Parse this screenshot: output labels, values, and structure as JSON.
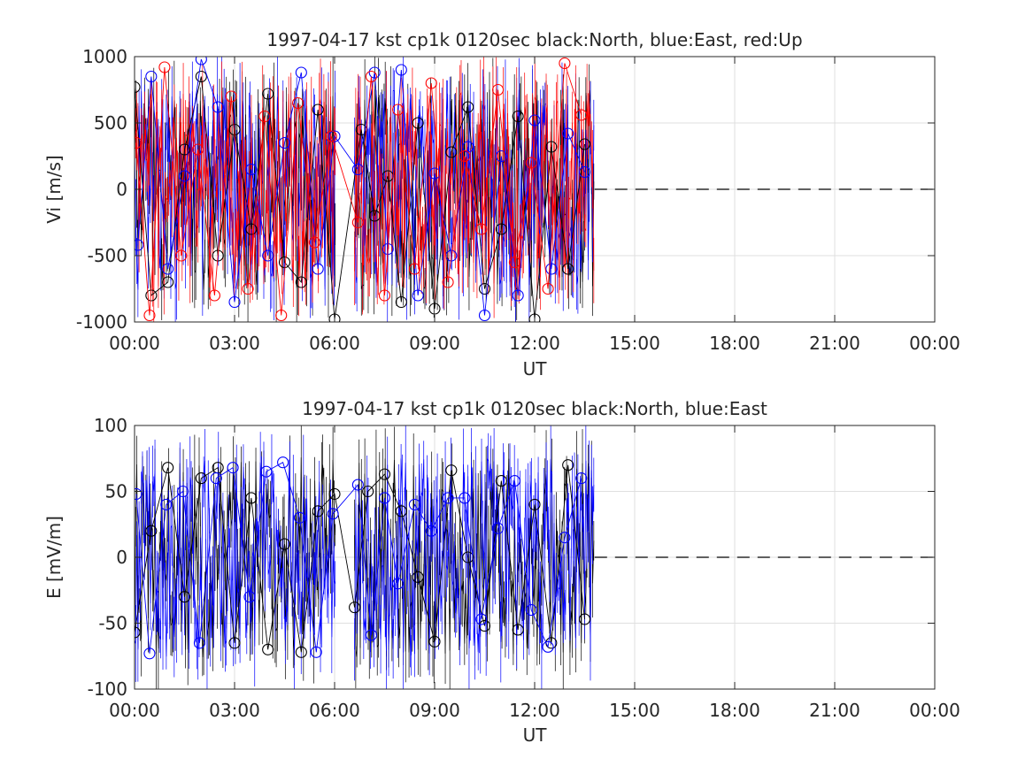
{
  "chart_data": [
    {
      "type": "scatter",
      "title": "1997-04-17 kst cp1k 0120sec black:North, blue:East, red:Up",
      "xlabel": "UT",
      "ylabel": "Vi [m/s]",
      "xlim": [
        "00:00",
        "24:00"
      ],
      "ylim": [
        -1000,
        1000
      ],
      "xticklabels": [
        "00:00",
        "03:00",
        "06:00",
        "09:00",
        "12:00",
        "15:00",
        "18:00",
        "21:00",
        "00:00"
      ],
      "yticks": [
        -1000,
        -500,
        0,
        500,
        1000
      ],
      "grid": true,
      "zero_line": "dashed",
      "data_coverage_hours": [
        0.0,
        13.8
      ],
      "gap_hours": [
        6.05,
        6.6
      ],
      "series": [
        {
          "label": "black:North",
          "color": "#000000",
          "marker": "open-circle",
          "error_bars": true,
          "x": [
            0.0,
            0.5,
            1.0,
            1.5,
            2.0,
            2.5,
            3.0,
            3.5,
            4.0,
            4.5,
            5.0,
            5.5,
            6.0,
            6.8,
            7.2,
            7.6,
            8.0,
            8.5,
            9.0,
            9.5,
            10.0,
            10.5,
            11.0,
            11.5,
            12.0,
            12.5,
            13.0,
            13.5
          ],
          "y": [
            770,
            -800,
            -700,
            300,
            850,
            -500,
            450,
            -300,
            720,
            -550,
            -700,
            600,
            -980,
            450,
            -200,
            100,
            -850,
            500,
            -900,
            280,
            620,
            -750,
            -300,
            550,
            -980,
            320,
            -600,
            340
          ]
        },
        {
          "label": "blue:East",
          "color": "#0000ff",
          "marker": "open-circle",
          "error_bars": true,
          "x": [
            0.1,
            0.5,
            1.0,
            1.5,
            2.0,
            2.5,
            3.0,
            3.5,
            4.0,
            4.5,
            5.0,
            5.5,
            6.0,
            6.7,
            7.2,
            7.6,
            8.0,
            8.5,
            9.0,
            9.5,
            10.0,
            10.5,
            11.0,
            11.5,
            12.0,
            12.5,
            13.0,
            13.5
          ],
          "y": [
            -420,
            850,
            -600,
            100,
            980,
            620,
            -850,
            150,
            -500,
            350,
            880,
            -600,
            400,
            150,
            880,
            -450,
            900,
            -800,
            120,
            -500,
            320,
            -950,
            250,
            -800,
            520,
            -600,
            420,
            130
          ]
        },
        {
          "label": "red:Up",
          "color": "#ff0000",
          "marker": "open-circle",
          "error_bars": true,
          "x": [
            0.05,
            0.45,
            0.9,
            1.4,
            1.9,
            2.4,
            2.9,
            3.4,
            3.9,
            4.4,
            4.9,
            5.4,
            5.9,
            6.7,
            7.1,
            7.5,
            7.9,
            8.4,
            8.9,
            9.4,
            9.9,
            10.4,
            10.9,
            11.4,
            11.9,
            12.4,
            12.9,
            13.4
          ],
          "y": [
            350,
            -950,
            920,
            -500,
            300,
            -800,
            700,
            -750,
            550,
            -950,
            650,
            -400,
            400,
            -250,
            850,
            -800,
            600,
            -600,
            800,
            -700,
            250,
            -300,
            750,
            -550,
            200,
            -750,
            950,
            560
          ]
        }
      ]
    },
    {
      "type": "scatter",
      "title": "1997-04-17 kst cp1k 0120sec black:North, blue:East",
      "xlabel": "UT",
      "ylabel": "E [mV/m]",
      "xlim": [
        "00:00",
        "24:00"
      ],
      "ylim": [
        -100,
        100
      ],
      "xticklabels": [
        "00:00",
        "03:00",
        "06:00",
        "09:00",
        "12:00",
        "15:00",
        "18:00",
        "21:00",
        "00:00"
      ],
      "yticks": [
        -100,
        -50,
        0,
        50,
        100
      ],
      "grid": true,
      "zero_line": "dashed",
      "data_coverage_hours": [
        0.0,
        13.8
      ],
      "gap_hours": [
        6.05,
        6.6
      ],
      "series": [
        {
          "label": "black:North",
          "color": "#000000",
          "marker": "open-circle",
          "error_bars": true,
          "x": [
            0.0,
            0.5,
            1.0,
            1.5,
            2.0,
            2.5,
            3.0,
            3.5,
            4.0,
            4.5,
            5.0,
            5.5,
            6.0,
            6.6,
            7.0,
            7.5,
            8.0,
            8.5,
            9.0,
            9.5,
            10.0,
            10.5,
            11.0,
            11.5,
            12.0,
            12.5,
            13.0,
            13.5
          ],
          "y": [
            -57,
            20,
            68,
            -30,
            60,
            68,
            -65,
            45,
            -70,
            10,
            -72,
            35,
            48,
            -38,
            50,
            63,
            35,
            -15,
            -64,
            66,
            0,
            -52,
            58,
            -55,
            40,
            -65,
            70,
            -47
          ]
        },
        {
          "label": "blue:East",
          "color": "#0000ff",
          "marker": "open-circle",
          "error_bars": true,
          "x": [
            0.05,
            0.45,
            0.95,
            1.45,
            1.95,
            2.45,
            2.95,
            3.45,
            3.95,
            4.45,
            4.95,
            5.45,
            5.95,
            6.7,
            7.1,
            7.5,
            7.9,
            8.4,
            8.9,
            9.4,
            9.9,
            10.4,
            10.9,
            11.4,
            11.9,
            12.4,
            12.9,
            13.4
          ],
          "y": [
            48,
            -73,
            40,
            50,
            -65,
            60,
            68,
            -30,
            65,
            72,
            30,
            -72,
            33,
            55,
            -59,
            45,
            -20,
            40,
            20,
            45,
            45,
            -47,
            22,
            58,
            -40,
            -68,
            15,
            60
          ]
        }
      ]
    }
  ]
}
